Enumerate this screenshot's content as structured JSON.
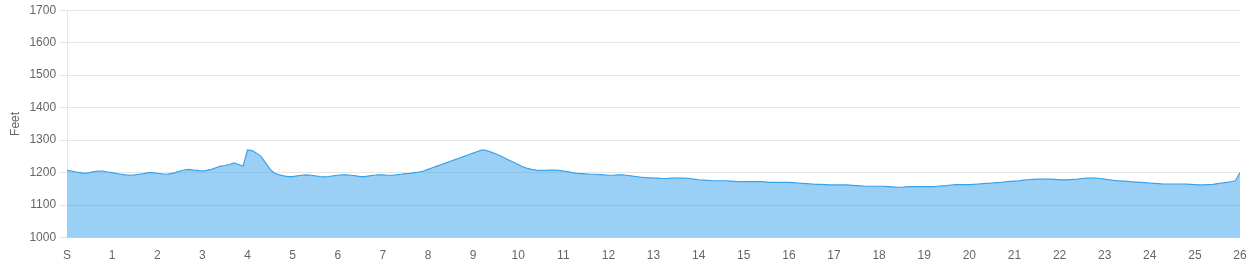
{
  "chart_data": {
    "type": "area",
    "ylabel": "Feet",
    "x": [
      0.0,
      0.1,
      0.2,
      0.3,
      0.4,
      0.5,
      0.6,
      0.7,
      0.8,
      0.9,
      1.0,
      1.1,
      1.2,
      1.3,
      1.4,
      1.5,
      1.6,
      1.7,
      1.8,
      1.9,
      2.0,
      2.1,
      2.2,
      2.3,
      2.4,
      2.5,
      2.6,
      2.7,
      2.8,
      2.9,
      3.0,
      3.1,
      3.2,
      3.3,
      3.4,
      3.5,
      3.6,
      3.7,
      3.8,
      3.9,
      4.0,
      4.1,
      4.2,
      4.3,
      4.4,
      4.5,
      4.6,
      4.7,
      4.8,
      4.9,
      5.0,
      5.1,
      5.2,
      5.3,
      5.4,
      5.5,
      5.6,
      5.7,
      5.8,
      5.9,
      6.0,
      6.1,
      6.2,
      6.3,
      6.4,
      6.5,
      6.6,
      6.7,
      6.8,
      6.9,
      7.0,
      7.1,
      7.2,
      7.3,
      7.4,
      7.5,
      7.6,
      7.7,
      7.8,
      7.9,
      8.0,
      8.1,
      8.2,
      8.3,
      8.4,
      8.5,
      8.6,
      8.7,
      8.8,
      8.9,
      9.0,
      9.1,
      9.2,
      9.3,
      9.4,
      9.5,
      9.6,
      9.7,
      9.8,
      9.9,
      10.0,
      10.1,
      10.2,
      10.3,
      10.4,
      10.5,
      10.6,
      10.7,
      10.8,
      10.9,
      11.0,
      11.1,
      11.2,
      11.3,
      11.4,
      11.5,
      11.6,
      11.7,
      11.8,
      11.9,
      12.0,
      12.1,
      12.2,
      12.3,
      12.4,
      12.5,
      12.6,
      12.7,
      12.8,
      12.9,
      13.0,
      13.1,
      13.2,
      13.3,
      13.4,
      13.5,
      13.6,
      13.7,
      13.8,
      13.9,
      14.0,
      14.1,
      14.2,
      14.3,
      14.4,
      14.5,
      14.6,
      14.7,
      14.8,
      14.9,
      15.0,
      15.1,
      15.2,
      15.3,
      15.4,
      15.5,
      15.6,
      15.7,
      15.8,
      15.9,
      16.0,
      16.1,
      16.2,
      16.3,
      16.4,
      16.5,
      16.6,
      16.7,
      16.8,
      16.9,
      17.0,
      17.1,
      17.2,
      17.3,
      17.4,
      17.5,
      17.6,
      17.7,
      17.8,
      17.9,
      18.0,
      18.1,
      18.2,
      18.3,
      18.4,
      18.5,
      18.6,
      18.7,
      18.8,
      18.9,
      19.0,
      19.1,
      19.2,
      19.3,
      19.4,
      19.5,
      19.6,
      19.7,
      19.8,
      19.9,
      20.0,
      20.1,
      20.2,
      20.3,
      20.4,
      20.5,
      20.6,
      20.7,
      20.8,
      20.9,
      21.0,
      21.1,
      21.2,
      21.3,
      21.4,
      21.5,
      21.6,
      21.7,
      21.8,
      21.9,
      22.0,
      22.1,
      22.2,
      22.3,
      22.4,
      22.5,
      22.6,
      22.7,
      22.8,
      22.9,
      23.0,
      23.1,
      23.2,
      23.3,
      23.4,
      23.5,
      23.6,
      23.7,
      23.8,
      23.9,
      24.0,
      24.1,
      24.2,
      24.3,
      24.4,
      24.5,
      24.6,
      24.7,
      24.8,
      24.9,
      25.0,
      25.1,
      25.2,
      25.3,
      25.4,
      25.5,
      25.6,
      25.7,
      25.8,
      25.9,
      26.0
    ],
    "values": [
      1207,
      1205,
      1202,
      1200,
      1198,
      1200,
      1203,
      1205,
      1205,
      1202,
      1200,
      1197,
      1195,
      1193,
      1192,
      1193,
      1195,
      1197,
      1200,
      1200,
      1198,
      1196,
      1195,
      1197,
      1200,
      1205,
      1208,
      1210,
      1208,
      1207,
      1205,
      1207,
      1210,
      1215,
      1220,
      1222,
      1225,
      1230,
      1225,
      1220,
      1270,
      1268,
      1260,
      1250,
      1230,
      1210,
      1198,
      1193,
      1190,
      1188,
      1188,
      1190,
      1192,
      1193,
      1192,
      1190,
      1188,
      1187,
      1188,
      1190,
      1192,
      1193,
      1193,
      1192,
      1190,
      1188,
      1188,
      1190,
      1192,
      1193,
      1193,
      1192,
      1192,
      1193,
      1195,
      1197,
      1198,
      1200,
      1202,
      1205,
      1210,
      1215,
      1220,
      1225,
      1230,
      1235,
      1240,
      1245,
      1250,
      1255,
      1260,
      1265,
      1270,
      1268,
      1263,
      1258,
      1252,
      1245,
      1238,
      1232,
      1225,
      1218,
      1213,
      1210,
      1208,
      1207,
      1207,
      1208,
      1208,
      1207,
      1205,
      1203,
      1200,
      1198,
      1197,
      1196,
      1195,
      1195,
      1194,
      1193,
      1192,
      1192,
      1193,
      1193,
      1192,
      1190,
      1188,
      1186,
      1185,
      1184,
      1183,
      1183,
      1182,
      1182,
      1183,
      1183,
      1183,
      1183,
      1182,
      1180,
      1178,
      1177,
      1176,
      1175,
      1175,
      1175,
      1175,
      1174,
      1173,
      1172,
      1172,
      1172,
      1172,
      1172,
      1172,
      1171,
      1170,
      1170,
      1170,
      1170,
      1170,
      1169,
      1168,
      1167,
      1166,
      1165,
      1164,
      1164,
      1163,
      1162,
      1162,
      1162,
      1162,
      1162,
      1161,
      1160,
      1159,
      1158,
      1158,
      1158,
      1158,
      1158,
      1157,
      1156,
      1155,
      1155,
      1156,
      1157,
      1157,
      1157,
      1157,
      1157,
      1157,
      1158,
      1159,
      1160,
      1162,
      1163,
      1163,
      1163,
      1163,
      1164,
      1165,
      1166,
      1167,
      1168,
      1169,
      1170,
      1172,
      1173,
      1174,
      1175,
      1177,
      1178,
      1179,
      1180,
      1180,
      1180,
      1180,
      1179,
      1178,
      1178,
      1178,
      1179,
      1180,
      1182,
      1183,
      1183,
      1183,
      1182,
      1180,
      1178,
      1176,
      1175,
      1174,
      1173,
      1172,
      1171,
      1170,
      1169,
      1168,
      1167,
      1166,
      1165,
      1165,
      1165,
      1165,
      1165,
      1165,
      1164,
      1163,
      1162,
      1162,
      1163,
      1164,
      1166,
      1168,
      1170,
      1172,
      1175,
      1200
    ],
    "xlim": [
      0,
      26
    ],
    "xticks": [
      {
        "value": 0,
        "label": "S"
      },
      1,
      2,
      3,
      4,
      5,
      6,
      7,
      8,
      9,
      10,
      11,
      12,
      13,
      14,
      15,
      16,
      17,
      18,
      19,
      20,
      21,
      22,
      23,
      24,
      25,
      26
    ],
    "ylim": [
      1000,
      1700
    ],
    "yticks": [
      1000,
      1100,
      1200,
      1300,
      1400,
      1500,
      1600,
      1700
    ],
    "grid": "y"
  }
}
